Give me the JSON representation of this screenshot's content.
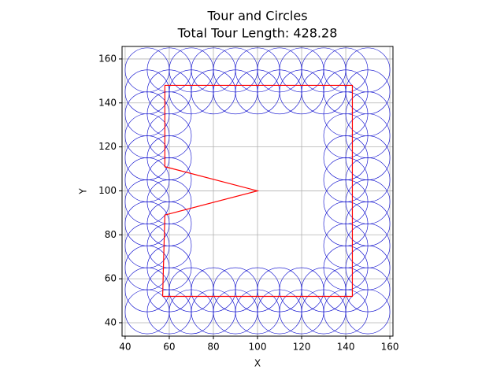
{
  "chart_data": {
    "type": "circles-tour",
    "title": "Tour and Circles",
    "subtitle": "Total Tour Length: 428.28",
    "x_label": "X",
    "y_label": "Y",
    "xlim": [
      38.6,
      161.4
    ],
    "ylim": [
      33.9,
      165.7
    ],
    "xticks": [
      40,
      60,
      80,
      100,
      120,
      140,
      160
    ],
    "yticks": [
      40,
      60,
      80,
      100,
      120,
      140,
      160
    ],
    "grid": true,
    "series": [
      {
        "name": "circles",
        "kind": "circle",
        "color": "#0000cc",
        "radius": 10,
        "x": [
          50,
          60,
          70,
          80,
          90,
          100,
          110,
          120,
          130,
          140,
          150,
          50,
          60,
          70,
          80,
          90,
          100,
          110,
          120,
          130,
          140,
          150,
          50,
          60,
          140,
          150,
          50,
          60,
          140,
          150,
          50,
          60,
          140,
          150,
          50,
          60,
          140,
          150,
          50,
          60,
          140,
          150,
          50,
          60,
          140,
          150,
          50,
          60,
          140,
          150,
          50,
          60,
          140,
          150,
          50,
          60,
          70,
          80,
          90,
          100,
          110,
          120,
          130,
          140,
          150,
          50,
          60,
          70,
          80,
          90,
          100,
          110,
          120,
          130,
          140,
          150
        ],
        "values": [
          45,
          45,
          45,
          45,
          45,
          45,
          45,
          45,
          45,
          45,
          45,
          55,
          55,
          55,
          55,
          55,
          55,
          55,
          55,
          55,
          55,
          55,
          65,
          65,
          65,
          65,
          75,
          75,
          75,
          75,
          85,
          85,
          85,
          85,
          95,
          95,
          95,
          95,
          105,
          105,
          105,
          105,
          115,
          115,
          115,
          115,
          125,
          125,
          125,
          125,
          135,
          135,
          135,
          135,
          145,
          145,
          145,
          145,
          145,
          145,
          145,
          145,
          145,
          145,
          145,
          155,
          155,
          155,
          155,
          155,
          155,
          155,
          155,
          155,
          155,
          155
        ]
      },
      {
        "name": "tour",
        "kind": "line",
        "color": "#ff0000",
        "x": [
          57,
          58,
          100,
          58,
          58,
          143,
          143,
          57,
          57
        ],
        "values": [
          52,
          89,
          100,
          111,
          148,
          148,
          52,
          52,
          52
        ]
      }
    ]
  }
}
